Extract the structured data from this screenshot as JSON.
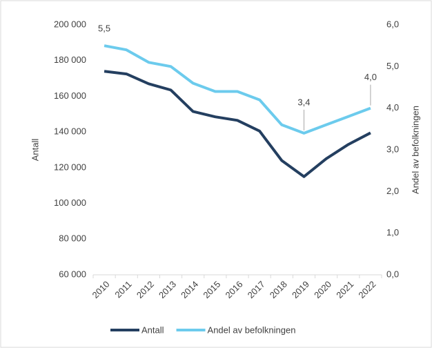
{
  "chart_data": {
    "type": "line",
    "categories": [
      "2010",
      "2011",
      "2012",
      "2013",
      "2014",
      "2015",
      "2016",
      "2017",
      "2018",
      "2019",
      "2020",
      "2021",
      "2022"
    ],
    "ylabel": "Antall",
    "y2label": "Andel av befolkningen",
    "ylim": [
      60000,
      200000
    ],
    "yticks": [
      {
        "value": 60000,
        "label": "60 000"
      },
      {
        "value": 80000,
        "label": "80 000"
      },
      {
        "value": 100000,
        "label": "100 000"
      },
      {
        "value": 120000,
        "label": "120 000"
      },
      {
        "value": 140000,
        "label": "140 000"
      },
      {
        "value": 160000,
        "label": "160 000"
      },
      {
        "value": 180000,
        "label": "180 000"
      },
      {
        "value": 200000,
        "label": "200 000"
      }
    ],
    "y2lim": [
      0,
      6
    ],
    "y2ticks": [
      {
        "value": 0,
        "label": "0,0"
      },
      {
        "value": 1,
        "label": "1,0"
      },
      {
        "value": 2,
        "label": "2,0"
      },
      {
        "value": 3,
        "label": "3,0"
      },
      {
        "value": 4,
        "label": "4,0"
      },
      {
        "value": 5,
        "label": "5,0"
      },
      {
        "value": 6,
        "label": "6,0"
      }
    ],
    "legend": "bottom",
    "series": [
      {
        "name": "Antall",
        "color": "#243f60",
        "values": [
          174000,
          172500,
          167000,
          163500,
          151500,
          148500,
          146500,
          140500,
          124000,
          115000,
          125000,
          133000,
          139500
        ]
      },
      {
        "name": "Andel av befolkningen",
        "color": "#6ccbed",
        "axis": "y2",
        "values": [
          5.5,
          5.4,
          5.1,
          5.0,
          4.6,
          4.4,
          4.4,
          4.2,
          3.6,
          3.4,
          3.6,
          3.8,
          4.0
        ],
        "value_labels": [
          "5,5",
          null,
          null,
          null,
          null,
          null,
          null,
          null,
          null,
          "3,4",
          null,
          null,
          "4,0"
        ]
      }
    ]
  }
}
